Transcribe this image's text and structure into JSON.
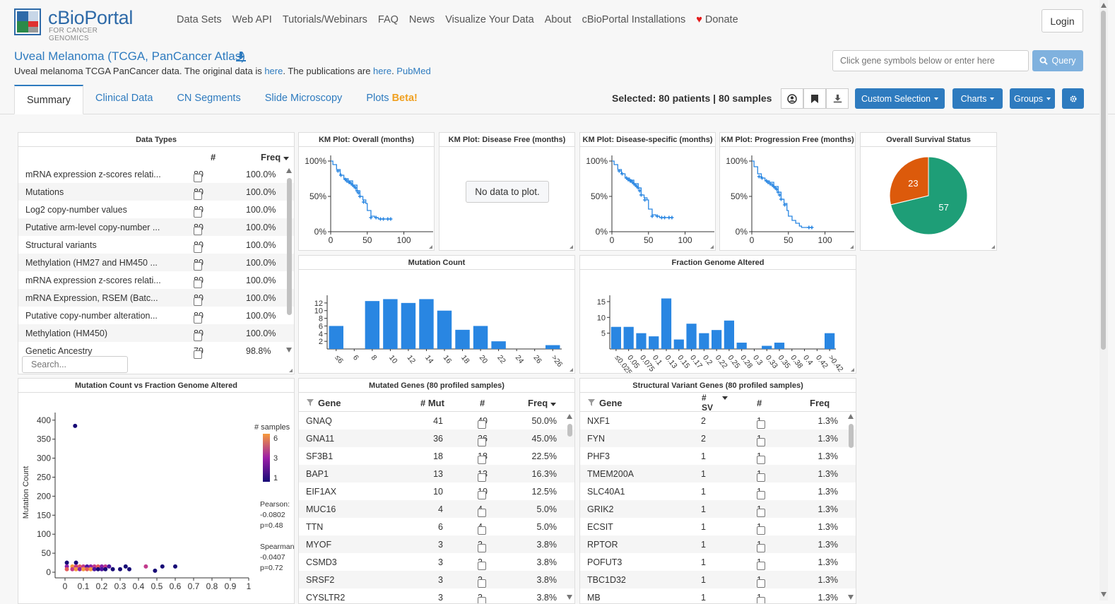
{
  "nav": {
    "logo_name": "cBioPortal",
    "logo_tagline": "FOR CANCER GENOMICS",
    "links": [
      "Data Sets",
      "Web API",
      "Tutorials/Webinars",
      "FAQ",
      "News",
      "Visualize Your Data",
      "About",
      "cBioPortal Installations"
    ],
    "donate": "Donate",
    "login": "Login"
  },
  "study": {
    "title": "Uveal Melanoma (TCGA, PanCancer Atlas)",
    "desc_pre": "Uveal melanoma TCGA PanCancer data. The original data is ",
    "desc_link1": "here",
    "desc_mid": ". The publications are ",
    "desc_link2": "here",
    "desc_link3": "PubMed",
    "gene_placeholder": "Click gene symbols below or enter here",
    "query": "Query"
  },
  "tabs": [
    {
      "label": "Summary",
      "beta": ""
    },
    {
      "label": "Clinical Data",
      "beta": ""
    },
    {
      "label": "CN Segments",
      "beta": ""
    },
    {
      "label": "Slide Microscopy",
      "beta": ""
    },
    {
      "label": "Plots ",
      "beta": "Beta!"
    }
  ],
  "toolbar": {
    "selected": "Selected: 80 patients | 80 samples",
    "custom_selection": "Custom Selection",
    "charts": "Charts",
    "groups": "Groups"
  },
  "data_types": {
    "title": "Data Types",
    "col_count": "#",
    "col_freq": "Freq",
    "search_placeholder": "Search...",
    "rows": [
      {
        "name": "mRNA expression z-scores relati...",
        "count": "80",
        "freq": "100.0%"
      },
      {
        "name": "Mutations",
        "count": "80",
        "freq": "100.0%"
      },
      {
        "name": "Log2 copy-number values",
        "count": "80",
        "freq": "100.0%"
      },
      {
        "name": "Putative arm-level copy-number ...",
        "count": "80",
        "freq": "100.0%"
      },
      {
        "name": "Structural variants",
        "count": "80",
        "freq": "100.0%"
      },
      {
        "name": "Methylation (HM27 and HM450 ...",
        "count": "80",
        "freq": "100.0%"
      },
      {
        "name": "mRNA expression z-scores relati...",
        "count": "80",
        "freq": "100.0%"
      },
      {
        "name": "mRNA Expression, RSEM (Batc...",
        "count": "80",
        "freq": "100.0%"
      },
      {
        "name": "Putative copy-number alteration...",
        "count": "80",
        "freq": "100.0%"
      },
      {
        "name": "Methylation (HM450)",
        "count": "80",
        "freq": "100.0%"
      },
      {
        "name": "Genetic Ancestry",
        "count": "79",
        "freq": "98.8%"
      }
    ]
  },
  "km_plots": [
    {
      "title": "KM Plot: Overall (months)",
      "yticks": [
        "100%",
        "50%",
        "0%"
      ],
      "xticks": [
        "0",
        "50",
        "100"
      ],
      "survival": [
        [
          0,
          100
        ],
        [
          3,
          95
        ],
        [
          8,
          88
        ],
        [
          13,
          80
        ],
        [
          18,
          75
        ],
        [
          24,
          72
        ],
        [
          30,
          66
        ],
        [
          36,
          58
        ],
        [
          40,
          50
        ],
        [
          44,
          45
        ],
        [
          48,
          40
        ],
        [
          50,
          30
        ],
        [
          55,
          22
        ],
        [
          60,
          20
        ],
        [
          65,
          18
        ],
        [
          75,
          18
        ],
        [
          82,
          18
        ]
      ],
      "censored": [
        [
          10,
          86
        ],
        [
          14,
          80
        ],
        [
          20,
          74
        ],
        [
          22,
          72
        ],
        [
          25,
          70
        ],
        [
          26,
          70
        ],
        [
          28,
          68
        ],
        [
          30,
          66
        ],
        [
          32,
          64
        ],
        [
          34,
          62
        ],
        [
          36,
          58
        ],
        [
          38,
          55
        ],
        [
          40,
          50
        ],
        [
          45,
          42
        ],
        [
          55,
          20
        ],
        [
          62,
          20
        ],
        [
          68,
          18
        ],
        [
          72,
          18
        ],
        [
          78,
          18
        ],
        [
          82,
          18
        ]
      ]
    },
    {
      "title": "KM Plot: Disease Free (months)",
      "no_data": "No data to plot."
    },
    {
      "title": "KM Plot: Disease-specific (months)",
      "yticks": [
        "100%",
        "50%",
        "0%"
      ],
      "xticks": [
        "0",
        "50",
        "100"
      ],
      "survival": [
        [
          0,
          100
        ],
        [
          3,
          95
        ],
        [
          8,
          88
        ],
        [
          13,
          82
        ],
        [
          18,
          76
        ],
        [
          24,
          73
        ],
        [
          30,
          68
        ],
        [
          36,
          62
        ],
        [
          40,
          52
        ],
        [
          44,
          48
        ],
        [
          48,
          45
        ],
        [
          50,
          32
        ],
        [
          55,
          24
        ],
        [
          60,
          22
        ],
        [
          65,
          20
        ],
        [
          75,
          20
        ],
        [
          82,
          20
        ]
      ],
      "censored": [
        [
          10,
          86
        ],
        [
          14,
          82
        ],
        [
          20,
          76
        ],
        [
          22,
          74
        ],
        [
          25,
          72
        ],
        [
          26,
          72
        ],
        [
          28,
          70
        ],
        [
          30,
          68
        ],
        [
          32,
          66
        ],
        [
          34,
          64
        ],
        [
          36,
          62
        ],
        [
          38,
          58
        ],
        [
          40,
          52
        ],
        [
          45,
          45
        ],
        [
          55,
          22
        ],
        [
          62,
          22
        ],
        [
          68,
          20
        ],
        [
          72,
          20
        ],
        [
          78,
          20
        ],
        [
          82,
          20
        ]
      ]
    },
    {
      "title": "KM Plot: Progression Free (months)",
      "yticks": [
        "100%",
        "50%",
        "0%"
      ],
      "xticks": [
        "0",
        "50",
        "100"
      ],
      "survival": [
        [
          0,
          100
        ],
        [
          3,
          92
        ],
        [
          8,
          82
        ],
        [
          13,
          76
        ],
        [
          18,
          72
        ],
        [
          24,
          70
        ],
        [
          30,
          64
        ],
        [
          36,
          56
        ],
        [
          40,
          46
        ],
        [
          44,
          40
        ],
        [
          48,
          30
        ],
        [
          50,
          22
        ],
        [
          55,
          16
        ],
        [
          60,
          12
        ],
        [
          65,
          8
        ],
        [
          68,
          6
        ],
        [
          75,
          6
        ],
        [
          82,
          6
        ]
      ],
      "censored": [
        [
          10,
          78
        ],
        [
          14,
          76
        ],
        [
          20,
          72
        ],
        [
          22,
          70
        ],
        [
          25,
          68
        ],
        [
          28,
          66
        ],
        [
          30,
          64
        ],
        [
          32,
          62
        ],
        [
          34,
          60
        ],
        [
          36,
          56
        ],
        [
          38,
          52
        ],
        [
          40,
          46
        ],
        [
          45,
          38
        ],
        [
          78,
          6
        ],
        [
          82,
          6
        ]
      ]
    }
  ],
  "survival_status": {
    "title": "Overall Survival Status",
    "slices": [
      {
        "label": "23",
        "value": 23,
        "color": "#dc5a0b"
      },
      {
        "label": "57",
        "value": 57,
        "color": "#1e9e77"
      }
    ]
  },
  "mutation_count": {
    "title": "Mutation Count",
    "chart_data": {
      "type": "bar",
      "categories": [
        "≤6",
        "6",
        "8",
        "10",
        "12",
        "14",
        "16",
        "18",
        "20",
        "22",
        "24",
        "26",
        ">26"
      ],
      "values": [
        6,
        0,
        12.5,
        13,
        12,
        13,
        10,
        5,
        6,
        2,
        0,
        0,
        1
      ],
      "yticks": [
        "2",
        "4",
        "6",
        "8",
        "10",
        "12"
      ],
      "ylim": [
        0,
        14
      ]
    }
  },
  "fga": {
    "title": "Fraction Genome Altered",
    "chart_data": {
      "type": "bar",
      "categories": [
        "≤0.025",
        "0.05",
        "0.075",
        "0.1",
        "0.13",
        "0.15",
        "0.17",
        "0.2",
        "0.22",
        "0.25",
        "0.28",
        "0.3",
        "0.33",
        "0.35",
        "0.38",
        "0.4",
        "0.42",
        ">0.42"
      ],
      "values": [
        7,
        7,
        5,
        4,
        16,
        3,
        8,
        5,
        6,
        9,
        2,
        0,
        1,
        2,
        0,
        0,
        0,
        5
      ],
      "yticks": [
        "5",
        "10",
        "15"
      ],
      "ylim": [
        0,
        17
      ]
    }
  },
  "scatter": {
    "title": "Mutation Count vs Fraction Genome Altered",
    "ylabel": "Mutation Count",
    "yticks": [
      "400",
      "350",
      "300",
      "250",
      "200",
      "150",
      "100",
      "50",
      "0"
    ],
    "xticks": [
      "0",
      "0.1",
      "0.2",
      "0.3",
      "0.4",
      "0.5",
      "0.6",
      "0.7",
      "0.8",
      "0.9",
      "1"
    ],
    "legend_title": "# samples",
    "legend_ticks": [
      "6",
      "3",
      "1"
    ],
    "pearson_label": "Pearson:",
    "pearson_r": "-0.0802",
    "pearson_p": "p=0.48",
    "spearman_label": "Spearman:",
    "spearman_r": "-0.0407",
    "spearman_p": "p=0.72",
    "chart_data": {
      "type": "scatter",
      "xlim": [
        0,
        1
      ],
      "ylim": [
        0,
        420
      ],
      "points": [
        [
          0.055,
          385,
          1
        ],
        [
          0.01,
          25,
          1
        ],
        [
          0.01,
          15,
          3
        ],
        [
          0.01,
          8,
          5
        ],
        [
          0.04,
          15,
          6
        ],
        [
          0.04,
          8,
          4
        ],
        [
          0.06,
          25,
          1
        ],
        [
          0.06,
          15,
          4
        ],
        [
          0.06,
          8,
          6
        ],
        [
          0.08,
          15,
          5
        ],
        [
          0.08,
          8,
          3
        ],
        [
          0.1,
          15,
          4
        ],
        [
          0.1,
          8,
          6
        ],
        [
          0.12,
          15,
          2
        ],
        [
          0.12,
          8,
          5
        ],
        [
          0.14,
          15,
          3
        ],
        [
          0.14,
          8,
          6
        ],
        [
          0.16,
          15,
          4
        ],
        [
          0.16,
          8,
          2
        ],
        [
          0.18,
          15,
          5
        ],
        [
          0.18,
          8,
          1
        ],
        [
          0.2,
          15,
          3
        ],
        [
          0.2,
          8,
          2
        ],
        [
          0.22,
          15,
          4
        ],
        [
          0.22,
          8,
          1
        ],
        [
          0.24,
          15,
          2
        ],
        [
          0.26,
          8,
          1
        ],
        [
          0.3,
          8,
          1
        ],
        [
          0.33,
          15,
          1
        ],
        [
          0.35,
          8,
          1
        ],
        [
          0.44,
          15,
          4
        ],
        [
          0.49,
          4,
          1
        ],
        [
          0.53,
          15,
          1
        ],
        [
          0.6,
          15,
          1
        ]
      ]
    }
  },
  "mutated_genes": {
    "title": "Mutated Genes (80 profiled samples)",
    "col_gene": "Gene",
    "col_mut": "# Mut",
    "col_count": "#",
    "col_freq": "Freq",
    "rows": [
      {
        "gene": "GNAQ",
        "mut": "41",
        "count": "40",
        "freq": "50.0%"
      },
      {
        "gene": "GNA11",
        "mut": "36",
        "count": "36",
        "freq": "45.0%"
      },
      {
        "gene": "SF3B1",
        "mut": "18",
        "count": "18",
        "freq": "22.5%"
      },
      {
        "gene": "BAP1",
        "mut": "13",
        "count": "13",
        "freq": "16.3%"
      },
      {
        "gene": "EIF1AX",
        "mut": "10",
        "count": "10",
        "freq": "12.5%"
      },
      {
        "gene": "MUC16",
        "mut": "4",
        "count": "4",
        "freq": "5.0%"
      },
      {
        "gene": "TTN",
        "mut": "6",
        "count": "4",
        "freq": "5.0%"
      },
      {
        "gene": "MYOF",
        "mut": "3",
        "count": "3",
        "freq": "3.8%"
      },
      {
        "gene": "CSMD3",
        "mut": "3",
        "count": "3",
        "freq": "3.8%"
      },
      {
        "gene": "SRSF2",
        "mut": "3",
        "count": "3",
        "freq": "3.8%"
      },
      {
        "gene": "CYSLTR2",
        "mut": "3",
        "count": "3",
        "freq": "3.8%"
      }
    ]
  },
  "sv_genes": {
    "title": "Structural Variant Genes (80 profiled samples)",
    "col_gene": "Gene",
    "col_sv_hash": "#",
    "col_sv": "SV",
    "col_count": "#",
    "col_freq": "Freq",
    "rows": [
      {
        "gene": "NXF1",
        "sv": "2",
        "count": "1",
        "freq": "1.3%"
      },
      {
        "gene": "FYN",
        "sv": "2",
        "count": "1",
        "freq": "1.3%"
      },
      {
        "gene": "PHF3",
        "sv": "1",
        "count": "1",
        "freq": "1.3%"
      },
      {
        "gene": "TMEM200A",
        "sv": "1",
        "count": "1",
        "freq": "1.3%"
      },
      {
        "gene": "SLC40A1",
        "sv": "1",
        "count": "1",
        "freq": "1.3%"
      },
      {
        "gene": "GRIK2",
        "sv": "1",
        "count": "1",
        "freq": "1.3%"
      },
      {
        "gene": "ECSIT",
        "sv": "1",
        "count": "1",
        "freq": "1.3%"
      },
      {
        "gene": "RPTOR",
        "sv": "1",
        "count": "1",
        "freq": "1.3%"
      },
      {
        "gene": "POFUT3",
        "sv": "1",
        "count": "1",
        "freq": "1.3%"
      },
      {
        "gene": "TBC1D32",
        "sv": "1",
        "count": "1",
        "freq": "1.3%"
      },
      {
        "gene": "MB",
        "sv": "1",
        "count": "1",
        "freq": "1.3%"
      }
    ]
  }
}
